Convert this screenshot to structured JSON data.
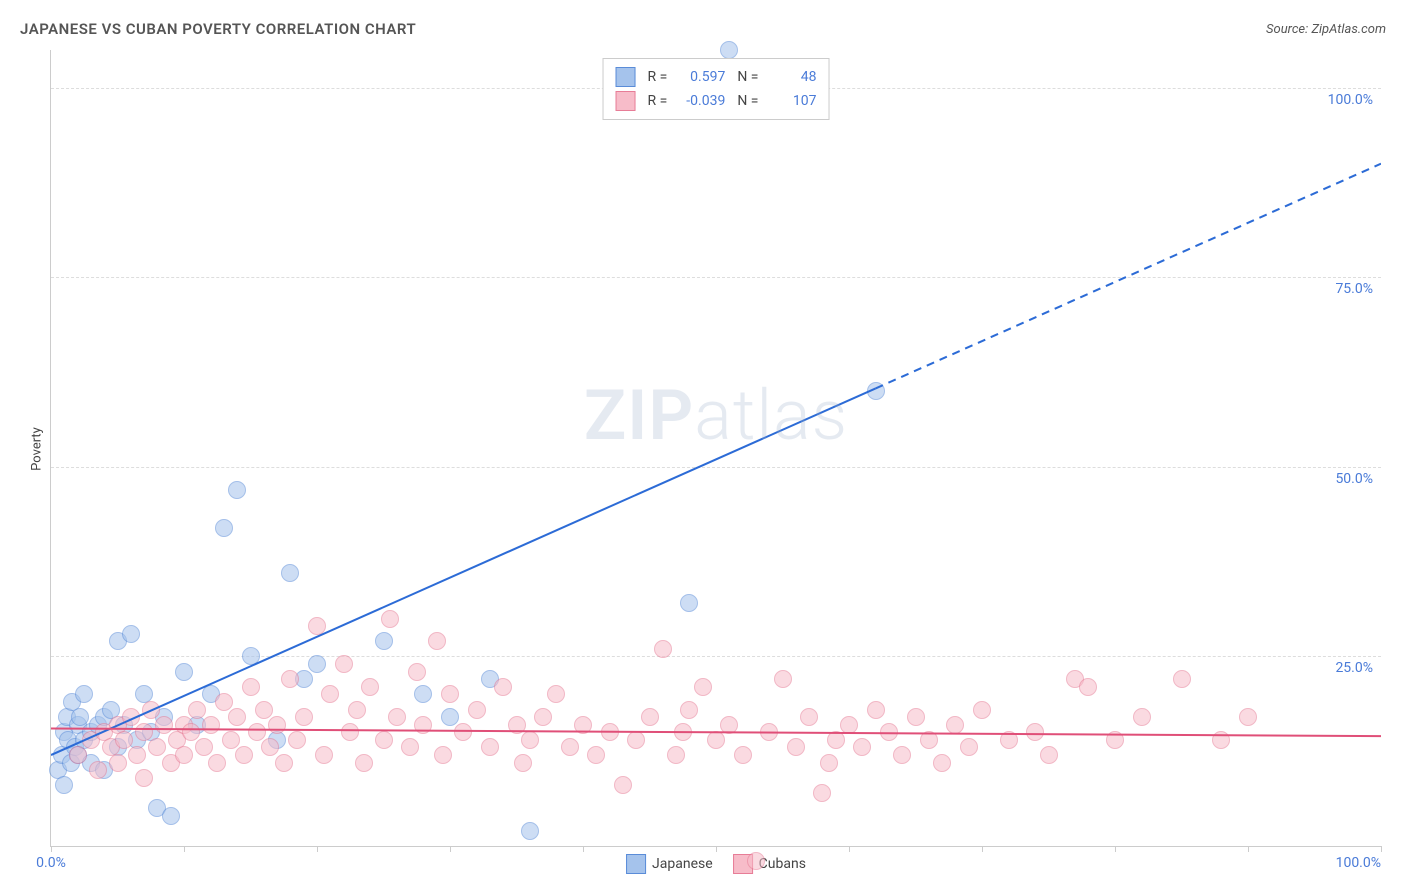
{
  "title": "JAPANESE VS CUBAN POVERTY CORRELATION CHART",
  "source_label": "Source:",
  "source_value": "ZipAtlas.com",
  "ylabel": "Poverty",
  "watermark_bold": "ZIP",
  "watermark_light": "atlas",
  "chart": {
    "type": "scatter",
    "background_color": "#ffffff",
    "grid_color": "#dddddd",
    "axis_color": "#cccccc",
    "xlim": [
      0,
      100
    ],
    "ylim": [
      0,
      105
    ],
    "ytick_values": [
      25,
      50,
      75,
      100
    ],
    "ytick_labels": [
      "25.0%",
      "50.0%",
      "75.0%",
      "100.0%"
    ],
    "xtick_values": [
      0,
      10,
      20,
      30,
      40,
      50,
      60,
      70,
      80,
      90,
      100
    ],
    "xtick_labels": {
      "0": "0.0%",
      "100": "100.0%"
    },
    "label_color": "#4a7bd8",
    "label_fontsize": 14,
    "point_radius": 9,
    "point_opacity": 0.55,
    "series": [
      {
        "name": "Japanese",
        "fill_color": "#a5c3ec",
        "stroke_color": "#5a8cd8",
        "regression": {
          "x0": 0,
          "y0": 12,
          "x1": 100,
          "y1": 90,
          "solid_until_x": 62,
          "color": "#2c6bd6",
          "width": 2
        },
        "R": "0.597",
        "N": "48",
        "points": [
          [
            0.5,
            10
          ],
          [
            0.8,
            12
          ],
          [
            1,
            15
          ],
          [
            1,
            8
          ],
          [
            1.2,
            17
          ],
          [
            1.3,
            14
          ],
          [
            1.5,
            11
          ],
          [
            1.6,
            19
          ],
          [
            1.8,
            13
          ],
          [
            2,
            16
          ],
          [
            2,
            12
          ],
          [
            2.2,
            17
          ],
          [
            2.5,
            14
          ],
          [
            2.5,
            20
          ],
          [
            3,
            15
          ],
          [
            3,
            11
          ],
          [
            3.5,
            16
          ],
          [
            4,
            17
          ],
          [
            4,
            10
          ],
          [
            4.5,
            18
          ],
          [
            5,
            27
          ],
          [
            5,
            13
          ],
          [
            5.5,
            16
          ],
          [
            6,
            28
          ],
          [
            6.5,
            14
          ],
          [
            7,
            20
          ],
          [
            7.5,
            15
          ],
          [
            8,
            5
          ],
          [
            8.5,
            17
          ],
          [
            9,
            4
          ],
          [
            10,
            23
          ],
          [
            11,
            16
          ],
          [
            12,
            20
          ],
          [
            13,
            42
          ],
          [
            14,
            47
          ],
          [
            15,
            25
          ],
          [
            17,
            14
          ],
          [
            18,
            36
          ],
          [
            19,
            22
          ],
          [
            20,
            24
          ],
          [
            25,
            27
          ],
          [
            28,
            20
          ],
          [
            30,
            17
          ],
          [
            33,
            22
          ],
          [
            36,
            2
          ],
          [
            48,
            32
          ],
          [
            51,
            105
          ],
          [
            62,
            60
          ]
        ]
      },
      {
        "name": "Cubans",
        "fill_color": "#f7bcc9",
        "stroke_color": "#e77d97",
        "regression": {
          "x0": 0,
          "y0": 15.5,
          "x1": 100,
          "y1": 14.5,
          "solid_until_x": 100,
          "color": "#e04f78",
          "width": 2
        },
        "R": "-0.039",
        "N": "107",
        "points": [
          [
            2,
            12
          ],
          [
            3,
            14
          ],
          [
            3.5,
            10
          ],
          [
            4,
            15
          ],
          [
            4.5,
            13
          ],
          [
            5,
            16
          ],
          [
            5,
            11
          ],
          [
            5.5,
            14
          ],
          [
            6,
            17
          ],
          [
            6.5,
            12
          ],
          [
            7,
            15
          ],
          [
            7,
            9
          ],
          [
            7.5,
            18
          ],
          [
            8,
            13
          ],
          [
            8.5,
            16
          ],
          [
            9,
            11
          ],
          [
            9.5,
            14
          ],
          [
            10,
            16
          ],
          [
            10,
            12
          ],
          [
            10.5,
            15
          ],
          [
            11,
            18
          ],
          [
            11.5,
            13
          ],
          [
            12,
            16
          ],
          [
            12.5,
            11
          ],
          [
            13,
            19
          ],
          [
            13.5,
            14
          ],
          [
            14,
            17
          ],
          [
            14.5,
            12
          ],
          [
            15,
            21
          ],
          [
            15.5,
            15
          ],
          [
            16,
            18
          ],
          [
            16.5,
            13
          ],
          [
            17,
            16
          ],
          [
            17.5,
            11
          ],
          [
            18,
            22
          ],
          [
            18.5,
            14
          ],
          [
            19,
            17
          ],
          [
            20,
            29
          ],
          [
            20.5,
            12
          ],
          [
            21,
            20
          ],
          [
            22,
            24
          ],
          [
            22.5,
            15
          ],
          [
            23,
            18
          ],
          [
            23.5,
            11
          ],
          [
            24,
            21
          ],
          [
            25,
            14
          ],
          [
            25.5,
            30
          ],
          [
            26,
            17
          ],
          [
            27,
            13
          ],
          [
            27.5,
            23
          ],
          [
            28,
            16
          ],
          [
            29,
            27
          ],
          [
            29.5,
            12
          ],
          [
            30,
            20
          ],
          [
            31,
            15
          ],
          [
            32,
            18
          ],
          [
            33,
            13
          ],
          [
            34,
            21
          ],
          [
            35,
            16
          ],
          [
            35.5,
            11
          ],
          [
            36,
            14
          ],
          [
            37,
            17
          ],
          [
            38,
            20
          ],
          [
            39,
            13
          ],
          [
            40,
            16
          ],
          [
            41,
            12
          ],
          [
            42,
            15
          ],
          [
            43,
            8
          ],
          [
            44,
            14
          ],
          [
            45,
            17
          ],
          [
            46,
            26
          ],
          [
            47,
            12
          ],
          [
            47.5,
            15
          ],
          [
            48,
            18
          ],
          [
            49,
            21
          ],
          [
            50,
            14
          ],
          [
            51,
            16
          ],
          [
            52,
            12
          ],
          [
            53,
            -2
          ],
          [
            54,
            15
          ],
          [
            55,
            22
          ],
          [
            56,
            13
          ],
          [
            57,
            17
          ],
          [
            58,
            7
          ],
          [
            58.5,
            11
          ],
          [
            59,
            14
          ],
          [
            60,
            16
          ],
          [
            61,
            13
          ],
          [
            62,
            18
          ],
          [
            63,
            15
          ],
          [
            64,
            12
          ],
          [
            65,
            17
          ],
          [
            66,
            14
          ],
          [
            67,
            11
          ],
          [
            68,
            16
          ],
          [
            69,
            13
          ],
          [
            70,
            18
          ],
          [
            72,
            14
          ],
          [
            74,
            15
          ],
          [
            75,
            12
          ],
          [
            77,
            22
          ],
          [
            78,
            21
          ],
          [
            80,
            14
          ],
          [
            82,
            17
          ],
          [
            85,
            22
          ],
          [
            88,
            14
          ],
          [
            90,
            17
          ]
        ]
      }
    ],
    "legend_stat_labels": {
      "R": "R =",
      "N": "N ="
    }
  }
}
